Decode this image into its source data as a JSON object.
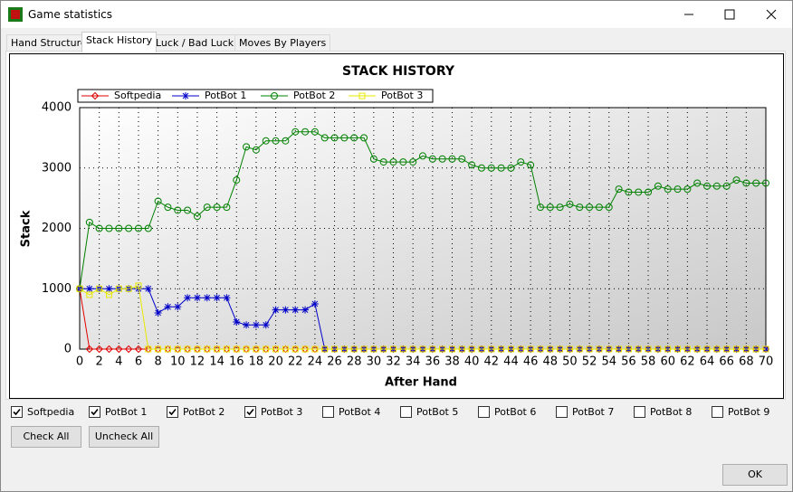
{
  "window": {
    "title": "Game statistics"
  },
  "tabs": [
    "Hand Structure",
    "Stack History",
    "Luck / Bad Luck",
    "Moves By Players"
  ],
  "chart_data": {
    "type": "line",
    "title": "STACK HISTORY",
    "x_label": "After Hand",
    "y_label": "Stack",
    "x": [
      0,
      1,
      2,
      3,
      4,
      5,
      6,
      7,
      8,
      9,
      10,
      11,
      12,
      13,
      14,
      15,
      16,
      17,
      18,
      19,
      20,
      21,
      22,
      23,
      24,
      25,
      26,
      27,
      28,
      29,
      30,
      31,
      32,
      33,
      34,
      35,
      36,
      37,
      38,
      39,
      40,
      41,
      42,
      43,
      44,
      45,
      46,
      47,
      48,
      49,
      50,
      51,
      52,
      53,
      54,
      55,
      56,
      57,
      58,
      59,
      60,
      61,
      62,
      63,
      64,
      65,
      66,
      67,
      68,
      69,
      70
    ],
    "series": [
      {
        "name": "Softpedia",
        "color": "#e00000",
        "marker": "diamond",
        "values": [
          1000,
          0,
          0,
          0,
          0,
          0,
          0,
          0,
          0,
          0,
          0,
          0,
          0,
          0,
          0,
          0,
          0,
          0,
          0,
          0,
          0,
          0,
          0,
          0,
          0,
          0,
          0,
          0,
          0,
          0,
          0,
          0,
          0,
          0,
          0,
          0,
          0,
          0,
          0,
          0,
          0,
          0,
          0,
          0,
          0,
          0,
          0,
          0,
          0,
          0,
          0,
          0,
          0,
          0,
          0,
          0,
          0,
          0,
          0,
          0,
          0,
          0,
          0,
          0,
          0,
          0,
          0,
          0,
          0,
          0,
          0
        ]
      },
      {
        "name": "PotBot 1",
        "color": "#0000c8",
        "marker": "star",
        "values": [
          1000,
          1000,
          1000,
          1000,
          1000,
          1000,
          1000,
          1000,
          600,
          700,
          700,
          850,
          850,
          850,
          850,
          850,
          450,
          400,
          400,
          400,
          650,
          650,
          650,
          650,
          750,
          0,
          0,
          0,
          0,
          0,
          0,
          0,
          0,
          0,
          0,
          0,
          0,
          0,
          0,
          0,
          0,
          0,
          0,
          0,
          0,
          0,
          0,
          0,
          0,
          0,
          0,
          0,
          0,
          0,
          0,
          0,
          0,
          0,
          0,
          0,
          0,
          0,
          0,
          0,
          0,
          0,
          0,
          0,
          0,
          0,
          0
        ]
      },
      {
        "name": "PotBot 2",
        "color": "#008000",
        "marker": "circle",
        "values": [
          1000,
          2100,
          2000,
          2000,
          2000,
          2000,
          2000,
          2000,
          2450,
          2350,
          2300,
          2300,
          2200,
          2350,
          2350,
          2350,
          2800,
          3350,
          3300,
          3450,
          3450,
          3450,
          3600,
          3600,
          3600,
          3500,
          3500,
          3500,
          3500,
          3500,
          3150,
          3100,
          3100,
          3100,
          3100,
          3200,
          3150,
          3150,
          3150,
          3150,
          3050,
          3000,
          3000,
          3000,
          3000,
          3100,
          3050,
          2350,
          2350,
          2350,
          2400,
          2350,
          2350,
          2350,
          2350,
          2650,
          2600,
          2600,
          2600,
          2700,
          2650,
          2650,
          2650,
          2750,
          2700,
          2700,
          2700,
          2800,
          2750,
          2750,
          2750
        ]
      },
      {
        "name": "PotBot 3",
        "color": "#e8e800",
        "marker": "square",
        "values": [
          1000,
          900,
          1000,
          900,
          1000,
          1000,
          1050,
          0,
          0,
          0,
          0,
          0,
          0,
          0,
          0,
          0,
          0,
          0,
          0,
          0,
          0,
          0,
          0,
          0,
          0,
          0,
          0,
          0,
          0,
          0,
          0,
          0,
          0,
          0,
          0,
          0,
          0,
          0,
          0,
          0,
          0,
          0,
          0,
          0,
          0,
          0,
          0,
          0,
          0,
          0,
          0,
          0,
          0,
          0,
          0,
          0,
          0,
          0,
          0,
          0,
          0,
          0,
          0,
          0,
          0,
          0,
          0,
          0,
          0,
          0,
          0
        ]
      }
    ],
    "xlim": [
      0,
      70
    ],
    "xticks": [
      0,
      2,
      4,
      6,
      8,
      10,
      12,
      14,
      16,
      18,
      20,
      22,
      24,
      26,
      28,
      30,
      32,
      34,
      36,
      38,
      40,
      42,
      44,
      46,
      48,
      50,
      52,
      54,
      56,
      58,
      60,
      62,
      64,
      66,
      68,
      70
    ],
    "ylim": [
      0,
      4000
    ],
    "yticks": [
      0,
      1000,
      2000,
      3000,
      4000
    ],
    "grid": true
  },
  "checkboxes": [
    {
      "label": "Softpedia",
      "checked": true
    },
    {
      "label": "PotBot 1",
      "checked": true
    },
    {
      "label": "PotBot 2",
      "checked": true
    },
    {
      "label": "PotBot 3",
      "checked": true
    },
    {
      "label": "PotBot 4",
      "checked": false
    },
    {
      "label": "PotBot 5",
      "checked": false
    },
    {
      "label": "PotBot 6",
      "checked": false
    },
    {
      "label": "PotBot 7",
      "checked": false
    },
    {
      "label": "PotBot 8",
      "checked": false
    },
    {
      "label": "PotBot 9",
      "checked": false
    }
  ],
  "buttons": {
    "check_all": "Check All",
    "uncheck_all": "Uncheck All",
    "ok": "OK"
  }
}
